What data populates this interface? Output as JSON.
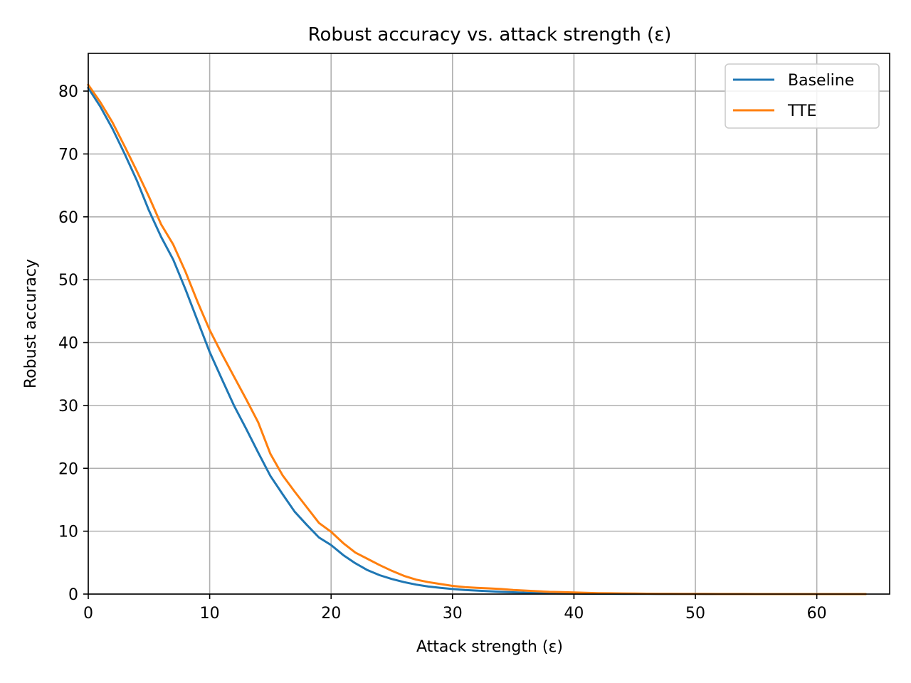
{
  "chart_data": {
    "type": "line",
    "title": "Robust accuracy vs. attack strength (ε)",
    "xlabel": "Attack strength (ε)",
    "ylabel": "Robust accuracy",
    "xlim": [
      0,
      66
    ],
    "ylim": [
      0,
      86
    ],
    "xticks": [
      0,
      10,
      20,
      30,
      40,
      50,
      60
    ],
    "yticks": [
      0,
      10,
      20,
      30,
      40,
      50,
      60,
      70,
      80
    ],
    "grid": true,
    "legend_position": "top-right",
    "x": [
      0,
      1,
      2,
      3,
      4,
      5,
      6,
      7,
      8,
      9,
      10,
      11,
      12,
      13,
      14,
      15,
      16,
      17,
      18,
      19,
      20,
      21,
      22,
      23,
      24,
      25,
      26,
      27,
      28,
      29,
      30,
      31,
      32,
      33,
      34,
      35,
      36,
      37,
      38,
      39,
      40,
      41,
      42,
      43,
      44,
      45,
      46,
      47,
      48,
      49,
      50,
      51,
      52,
      53,
      54,
      55,
      56,
      57,
      58,
      59,
      60,
      61,
      62,
      63,
      64
    ],
    "series": [
      {
        "name": "Baseline",
        "color": "#1f77b4",
        "values": [
          80.5,
          77.5,
          74.0,
          70.0,
          65.8,
          61.0,
          56.8,
          53.2,
          48.5,
          43.5,
          38.5,
          34.2,
          30.0,
          26.3,
          22.5,
          18.8,
          15.9,
          13.1,
          11.0,
          9.0,
          7.8,
          6.2,
          4.9,
          3.8,
          3.0,
          2.4,
          1.9,
          1.5,
          1.2,
          1.0,
          0.8,
          0.65,
          0.55,
          0.45,
          0.35,
          0.28,
          0.22,
          0.17,
          0.13,
          0.1,
          0.08,
          0.06,
          0.05,
          0.04,
          0.03,
          0.02,
          0.02,
          0.01,
          0.01,
          0.01,
          0.01,
          0.0,
          0.0,
          0.0,
          0.0,
          0.0,
          0.0,
          0.0,
          0.0,
          0.0,
          0.0,
          0.0,
          0.0,
          0.0,
          0.0
        ]
      },
      {
        "name": "TTE",
        "color": "#ff7f0e",
        "values": [
          81.0,
          78.2,
          75.0,
          71.2,
          67.3,
          63.2,
          58.8,
          55.6,
          51.3,
          46.5,
          42.0,
          38.2,
          34.6,
          31.0,
          27.3,
          22.3,
          18.9,
          16.3,
          13.8,
          11.3,
          9.9,
          8.1,
          6.6,
          5.6,
          4.6,
          3.7,
          2.9,
          2.3,
          1.9,
          1.6,
          1.3,
          1.1,
          1.0,
          0.9,
          0.8,
          0.65,
          0.55,
          0.45,
          0.35,
          0.3,
          0.25,
          0.2,
          0.15,
          0.12,
          0.1,
          0.08,
          0.06,
          0.05,
          0.04,
          0.03,
          0.02,
          0.02,
          0.01,
          0.01,
          0.01,
          0.0,
          0.0,
          0.0,
          0.0,
          0.0,
          0.0,
          0.0,
          0.0,
          0.0,
          0.0
        ]
      }
    ]
  }
}
